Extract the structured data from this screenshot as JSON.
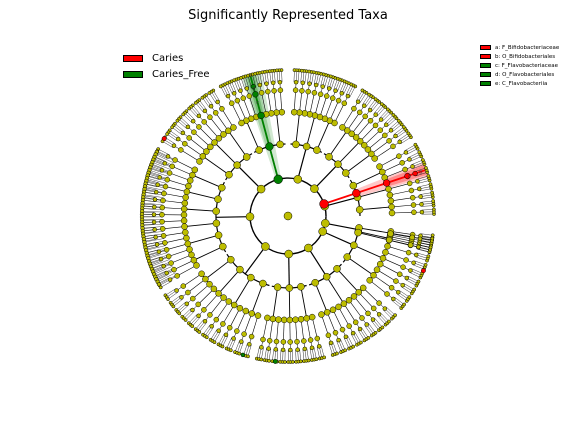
{
  "chart_data": {
    "type": "cladogram",
    "title": "Significantly Represented Taxa",
    "groups": [
      {
        "name": "Caries",
        "color": "#ff0000"
      },
      {
        "name": "Caries_Free",
        "color": "#008000"
      }
    ],
    "clades": [
      {
        "letter": "a",
        "label": "a: F_Bifidobacteriaceae",
        "group": "Caries",
        "highlighted": true
      },
      {
        "letter": "b",
        "label": "b: O_Bifidobacteriales",
        "group": "Caries",
        "highlighted": true
      },
      {
        "letter": "c",
        "label": "c: F_Flavobacteriaceae",
        "group": "Caries_Free",
        "highlighted": true
      },
      {
        "letter": "d",
        "label": "d: O_Flavobacteriales",
        "group": "Caries_Free",
        "highlighted": true
      },
      {
        "letter": "e",
        "label": "e: C_Flavobacteriia",
        "group": "Caries_Free",
        "highlighted": true
      }
    ],
    "node_color_default": "#bdbd00",
    "legend_main_position": "top-left",
    "legend_clades_position": "top-right"
  }
}
